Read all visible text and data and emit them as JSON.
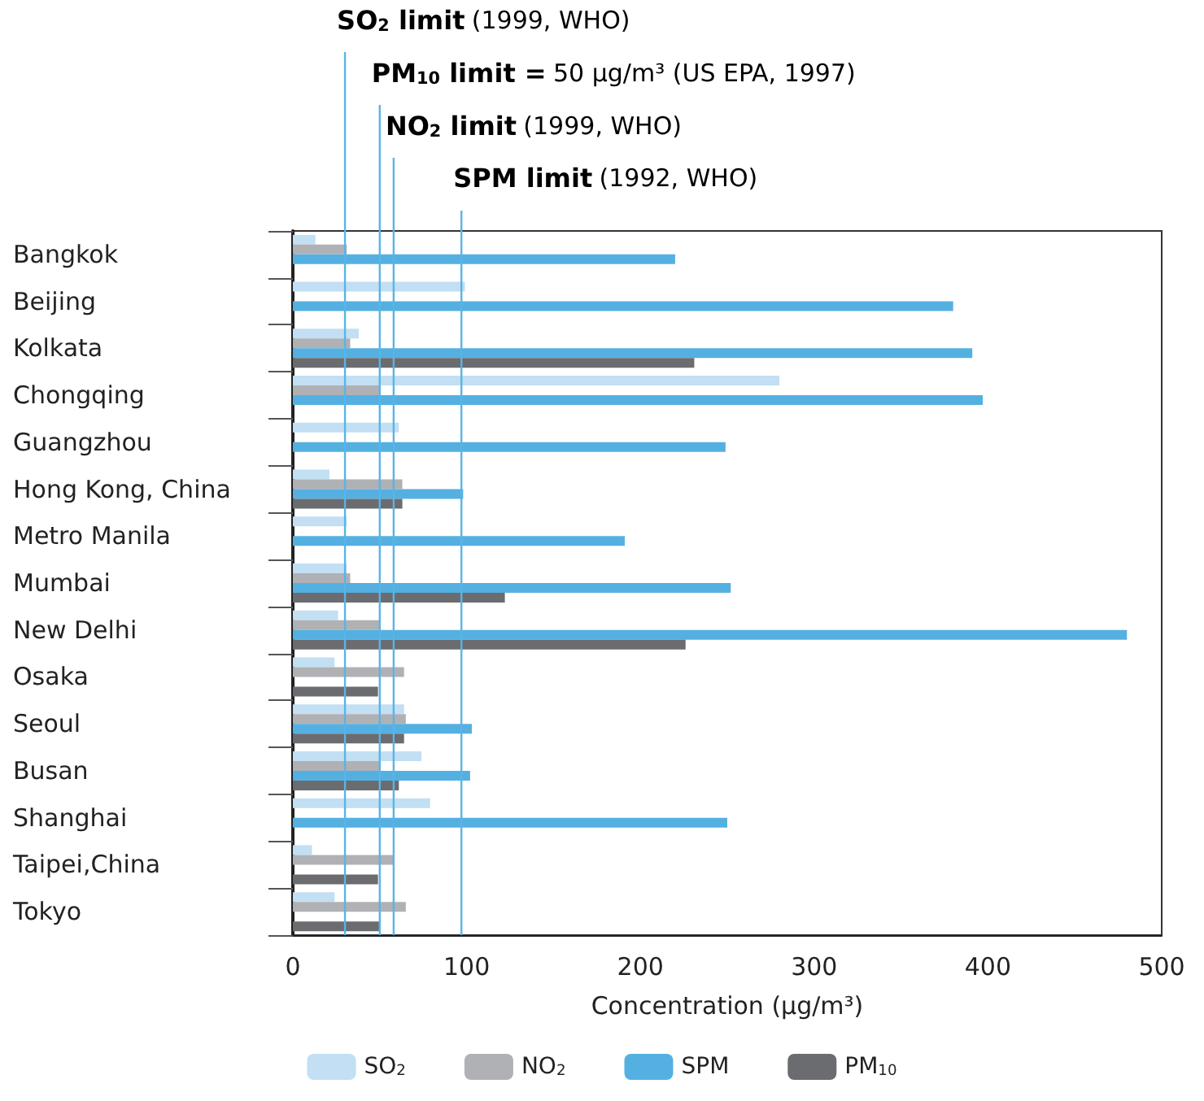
{
  "chart_data": {
    "type": "bar",
    "orientation": "horizontal",
    "xlabel": "Concentration (μg/m³)",
    "categories": [
      "Bangkok",
      "Beijing",
      "Kolkata",
      "Chongqing",
      "Guangzhou",
      "Hong Kong, China",
      "Metro Manila",
      "Mumbai",
      "New Delhi",
      "Osaka",
      "Seoul",
      "Busan",
      "Shanghai",
      "Taipei,China",
      "Tokyo"
    ],
    "series": [
      {
        "name": "SO$_{2}$",
        "color": "#c2dff3",
        "values": [
          13,
          99,
          38,
          280,
          61,
          21,
          31,
          31,
          26,
          24,
          64,
          74,
          79,
          11,
          24
        ]
      },
      {
        "name": "NO$_{2}$",
        "color": "#b0b1b4",
        "values": [
          31,
          null,
          33,
          50,
          null,
          63,
          null,
          33,
          50,
          64,
          65,
          50,
          null,
          58,
          65
        ]
      },
      {
        "name": "SPM",
        "color": "#55b0e2",
        "values": [
          220,
          380,
          391,
          397,
          249,
          98,
          191,
          252,
          480,
          null,
          103,
          102,
          250,
          null,
          null
        ]
      },
      {
        "name": "PM$_{10}$",
        "color": "#6b6c70",
        "values": [
          null,
          null,
          231,
          null,
          null,
          63,
          null,
          122,
          226,
          49,
          64,
          61,
          null,
          49,
          50
        ]
      }
    ],
    "xlim": [
      0,
      500
    ],
    "xticks": [
      0,
      100,
      200,
      300,
      400,
      500
    ],
    "grid": false,
    "legend": "bottom",
    "ref_lines": [
      {
        "axis": "x",
        "value": 30,
        "label": "SO$_{2}$ limit (1999, WHO)",
        "color": "#5ab4e5"
      },
      {
        "axis": "x",
        "value": 50,
        "label": "PM$_{10}$ limit = 50 μg/m³ (US EPA, 1997)",
        "color": "#5ab4e5"
      },
      {
        "axis": "x",
        "value": 58,
        "label": "NO$_{2}$ limit (1999, WHO)",
        "color": "#5ab4e5"
      },
      {
        "axis": "x",
        "value": 97,
        "label": "SPM limit (1992, WHO)",
        "color": "#5ab4e5"
      }
    ]
  }
}
